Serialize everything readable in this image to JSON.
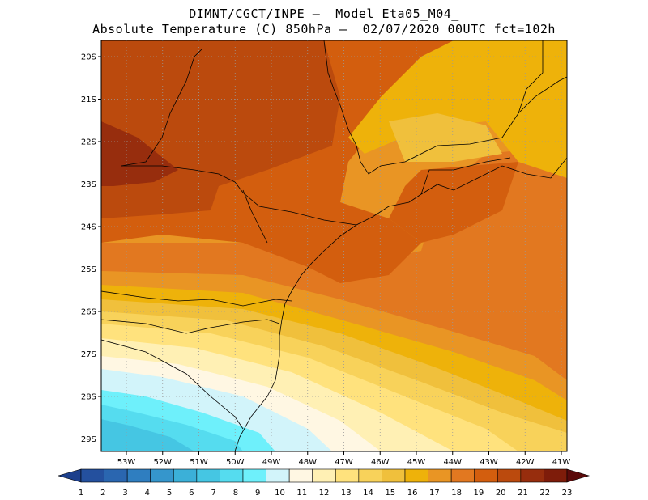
{
  "header": {
    "line1": "DIMNT/CGCT/INPE –  Model Eta05_M04_",
    "line2": "Absolute Temperature (C) 850hPa –  02/07/2020 00UTC fct=102h"
  },
  "map": {
    "lat_labels": [
      "20S",
      "21S",
      "22S",
      "23S",
      "24S",
      "25S",
      "26S",
      "27S",
      "28S",
      "29S"
    ],
    "lon_labels": [
      "53W",
      "52W",
      "51W",
      "50W",
      "49W",
      "48W",
      "47W",
      "46W",
      "45W",
      "44W",
      "43W",
      "42W",
      "41W"
    ]
  },
  "colorbar": {
    "labels": [
      "1",
      "2",
      "3",
      "4",
      "5",
      "6",
      "7",
      "8",
      "9",
      "10",
      "11",
      "12",
      "13",
      "14",
      "15",
      "16",
      "17",
      "18",
      "19",
      "20",
      "21",
      "22",
      "23"
    ],
    "colors": [
      "#1c3f8c",
      "#24509e",
      "#2a66b0",
      "#2f7ec0",
      "#3596cc",
      "#3bb0d8",
      "#45c6e3",
      "#55dcef",
      "#6ef0fb",
      "#d2f4fa",
      "#fff7e3",
      "#fff0b4",
      "#ffe27d",
      "#f8d25a",
      "#f0c03c",
      "#eeb20a",
      "#e99524",
      "#e27820",
      "#d35e0e",
      "#bb4a0d",
      "#972d0d",
      "#7e1c0a",
      "#5a0a0a"
    ]
  }
}
